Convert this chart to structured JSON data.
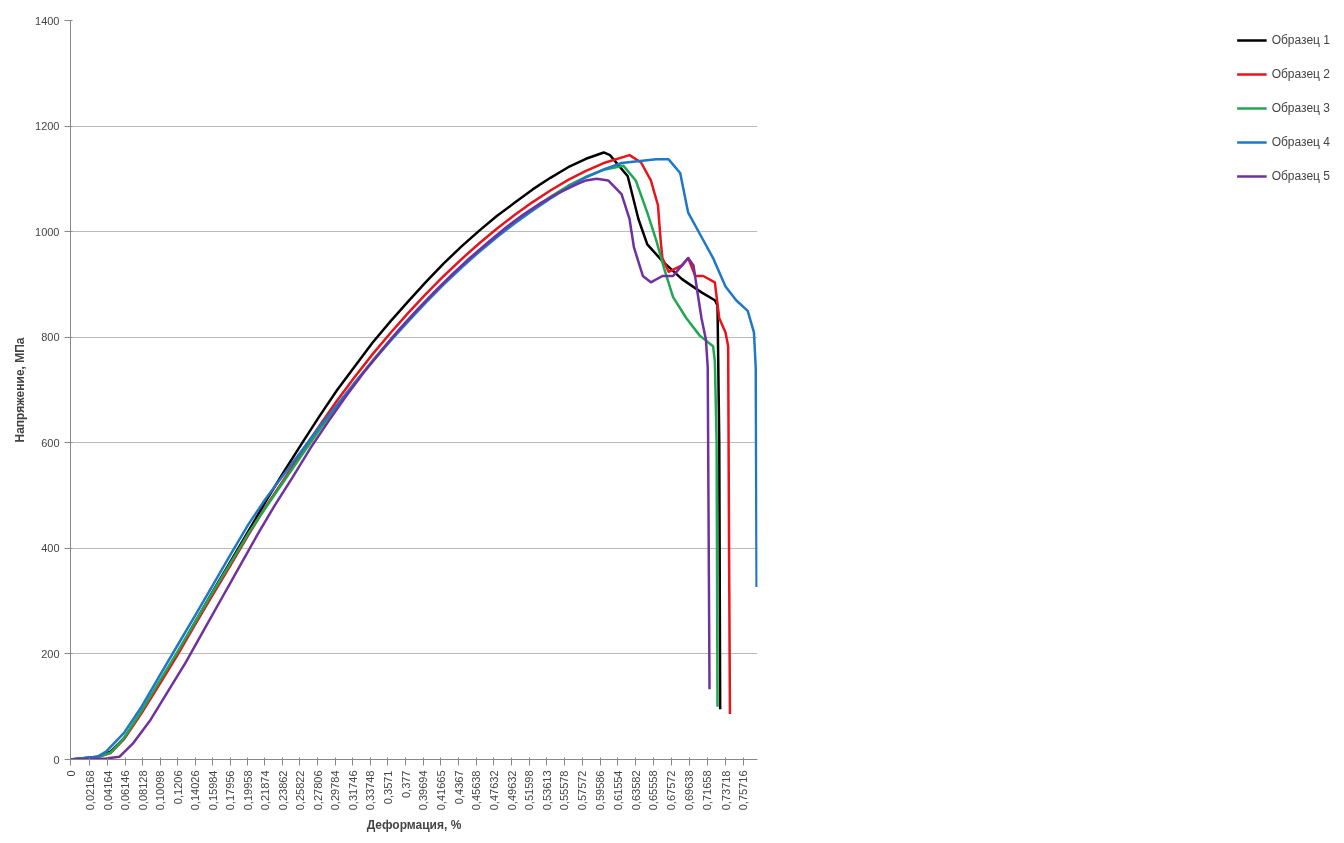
{
  "chart_data": {
    "type": "line",
    "xlabel": "Деформация, %",
    "ylabel": "Напряжение, МПа",
    "xlim": [
      0,
      0.773
    ],
    "ylim": [
      0,
      1400
    ],
    "yticks": [
      0,
      200,
      400,
      600,
      800,
      1000,
      1200,
      1400
    ],
    "xticks": [
      {
        "value": 0,
        "label": "0"
      },
      {
        "value": 0.02168,
        "label": "0,02168"
      },
      {
        "value": 0.04164,
        "label": "0,04164"
      },
      {
        "value": 0.06146,
        "label": "0,06146"
      },
      {
        "value": 0.08128,
        "label": "0,08128"
      },
      {
        "value": 0.10098,
        "label": "0,10098"
      },
      {
        "value": 0.1206,
        "label": "0,1206"
      },
      {
        "value": 0.14026,
        "label": "0,14026"
      },
      {
        "value": 0.15984,
        "label": "0,15984"
      },
      {
        "value": 0.17956,
        "label": "0,17956"
      },
      {
        "value": 0.19958,
        "label": "0,19958"
      },
      {
        "value": 0.21874,
        "label": "0,21874"
      },
      {
        "value": 0.23862,
        "label": "0,23862"
      },
      {
        "value": 0.25822,
        "label": "0,25822"
      },
      {
        "value": 0.27806,
        "label": "0,27806"
      },
      {
        "value": 0.29784,
        "label": "0,29784"
      },
      {
        "value": 0.31746,
        "label": "0,31746"
      },
      {
        "value": 0.33748,
        "label": "0,33748"
      },
      {
        "value": 0.3571,
        "label": "0,3571"
      },
      {
        "value": 0.377,
        "label": "0,377"
      },
      {
        "value": 0.39694,
        "label": "0,39694"
      },
      {
        "value": 0.41665,
        "label": "0,41665"
      },
      {
        "value": 0.4367,
        "label": "0,4367"
      },
      {
        "value": 0.45638,
        "label": "0,45638"
      },
      {
        "value": 0.47632,
        "label": "0,47632"
      },
      {
        "value": 0.49632,
        "label": "0,49632"
      },
      {
        "value": 0.51598,
        "label": "0,51598"
      },
      {
        "value": 0.53613,
        "label": "0,53613"
      },
      {
        "value": 0.55578,
        "label": "0,55578"
      },
      {
        "value": 0.57572,
        "label": "0,57572"
      },
      {
        "value": 0.59586,
        "label": "0,59586"
      },
      {
        "value": 0.61554,
        "label": "0,61554"
      },
      {
        "value": 0.63582,
        "label": "0,63582"
      },
      {
        "value": 0.65558,
        "label": "0,65558"
      },
      {
        "value": 0.67572,
        "label": "0,67572"
      },
      {
        "value": 0.69638,
        "label": "0,69638"
      },
      {
        "value": 0.71658,
        "label": "0,71658"
      },
      {
        "value": 0.73718,
        "label": "0,73718"
      },
      {
        "value": 0.75716,
        "label": "0,75716"
      }
    ],
    "grid": "y",
    "legend": "right",
    "marker": "none",
    "line_style": "solid",
    "series": [
      {
        "name": "Образец 1",
        "color": "#000000",
        "x": [
          0,
          0.03,
          0.045,
          0.06,
          0.08,
          0.1,
          0.12,
          0.14,
          0.16,
          0.18,
          0.2,
          0.22,
          0.24,
          0.26,
          0.28,
          0.3,
          0.32,
          0.34,
          0.36,
          0.38,
          0.4,
          0.42,
          0.44,
          0.46,
          0.48,
          0.5,
          0.52,
          0.54,
          0.56,
          0.58,
          0.6,
          0.607,
          0.627,
          0.639,
          0.649,
          0.666,
          0.688,
          0.71,
          0.725,
          0.728,
          0.73,
          0.731
        ],
        "values": [
          0,
          5,
          15,
          40,
          90,
          145,
          200,
          260,
          318,
          375,
          432,
          490,
          545,
          598,
          650,
          700,
          745,
          790,
          830,
          868,
          905,
          940,
          972,
          1002,
          1030,
          1055,
          1080,
          1102,
          1122,
          1138,
          1150,
          1145,
          1105,
          1024,
          976,
          944,
          910,
          885,
          870,
          860,
          600,
          95
        ]
      },
      {
        "name": "Образец 2",
        "color": "#e8131b",
        "x": [
          0,
          0.03,
          0.045,
          0.06,
          0.08,
          0.1,
          0.12,
          0.14,
          0.16,
          0.18,
          0.2,
          0.22,
          0.24,
          0.26,
          0.28,
          0.3,
          0.32,
          0.34,
          0.36,
          0.38,
          0.4,
          0.42,
          0.44,
          0.46,
          0.48,
          0.5,
          0.52,
          0.54,
          0.56,
          0.58,
          0.6,
          0.629,
          0.642,
          0.653,
          0.661,
          0.664,
          0.666,
          0.673,
          0.688,
          0.695,
          0.703,
          0.712,
          0.725,
          0.73,
          0.737,
          0.74,
          0.741,
          0.742
        ],
        "values": [
          0,
          4,
          12,
          38,
          88,
          142,
          197,
          255,
          312,
          368,
          425,
          480,
          530,
          582,
          632,
          680,
          725,
          768,
          808,
          846,
          882,
          916,
          948,
          978,
          1006,
          1032,
          1056,
          1078,
          1098,
          1115,
          1130,
          1145,
          1131,
          1097,
          1050,
          984,
          950,
          924,
          936,
          950,
          916,
          916,
          904,
          836,
          809,
          783,
          400,
          86
        ]
      },
      {
        "name": "Образец 3",
        "color": "#1fa84f",
        "x": [
          0,
          0.03,
          0.045,
          0.06,
          0.08,
          0.1,
          0.12,
          0.14,
          0.16,
          0.18,
          0.2,
          0.22,
          0.24,
          0.26,
          0.28,
          0.3,
          0.32,
          0.34,
          0.36,
          0.38,
          0.4,
          0.42,
          0.44,
          0.46,
          0.48,
          0.5,
          0.52,
          0.54,
          0.56,
          0.58,
          0.6,
          0.622,
          0.636,
          0.649,
          0.659,
          0.668,
          0.678,
          0.693,
          0.708,
          0.723,
          0.725,
          0.727,
          0.728
        ],
        "values": [
          0,
          4,
          13,
          40,
          92,
          148,
          203,
          260,
          317,
          372,
          428,
          478,
          527,
          576,
          624,
          670,
          714,
          756,
          795,
          833,
          868,
          902,
          934,
          964,
          992,
          1018,
          1043,
          1066,
          1087,
          1104,
          1117,
          1125,
          1097,
          1036,
          984,
          930,
          876,
          836,
          803,
          783,
          755,
          600,
          100
        ]
      },
      {
        "name": "Образец 4",
        "color": "#1f77c8",
        "x": [
          0,
          0.03,
          0.04,
          0.06,
          0.08,
          0.1,
          0.12,
          0.14,
          0.16,
          0.18,
          0.2,
          0.22,
          0.24,
          0.26,
          0.28,
          0.3,
          0.32,
          0.34,
          0.36,
          0.38,
          0.4,
          0.42,
          0.44,
          0.46,
          0.48,
          0.5,
          0.52,
          0.54,
          0.56,
          0.58,
          0.6,
          0.62,
          0.659,
          0.673,
          0.686,
          0.695,
          0.708,
          0.723,
          0.737,
          0.749,
          0.762,
          0.769,
          0.771,
          0.772
        ],
        "values": [
          0,
          5,
          15,
          50,
          100,
          158,
          215,
          272,
          330,
          388,
          445,
          495,
          540,
          585,
          630,
          672,
          714,
          754,
          793,
          830,
          866,
          900,
          932,
          962,
          990,
          1016,
          1040,
          1063,
          1084,
          1103,
          1118,
          1130,
          1137,
          1137,
          1111,
          1036,
          996,
          950,
          896,
          870,
          850,
          809,
          743,
          327
        ]
      },
      {
        "name": "Образец 5",
        "color": "#7030a0",
        "x": [
          0,
          0.04,
          0.055,
          0.07,
          0.09,
          0.11,
          0.13,
          0.15,
          0.17,
          0.19,
          0.21,
          0.23,
          0.25,
          0.27,
          0.29,
          0.31,
          0.33,
          0.35,
          0.37,
          0.39,
          0.41,
          0.43,
          0.45,
          0.47,
          0.49,
          0.51,
          0.53,
          0.55,
          0.57,
          0.58,
          0.592,
          0.605,
          0.62,
          0.629,
          0.634,
          0.644,
          0.653,
          0.666,
          0.678,
          0.688,
          0.695,
          0.701,
          0.705,
          0.71,
          0.715,
          0.717,
          0.719
        ],
        "values": [
          0,
          2,
          5,
          30,
          75,
          130,
          185,
          245,
          305,
          365,
          425,
          482,
          535,
          590,
          640,
          688,
          733,
          775,
          815,
          852,
          887,
          920,
          951,
          980,
          1008,
          1033,
          1055,
          1074,
          1090,
          1097,
          1100,
          1097,
          1071,
          1024,
          970,
          916,
          904,
          916,
          916,
          936,
          950,
          936,
          890,
          836,
          795,
          743,
          133
        ]
      }
    ]
  }
}
